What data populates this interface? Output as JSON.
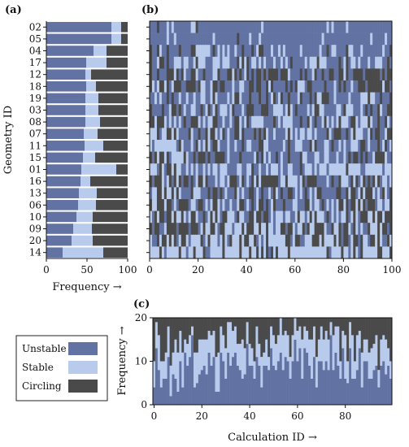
{
  "colors": {
    "unstable": "#6273a3",
    "stable": "#b8cbec",
    "circling": "#4a4a4a"
  },
  "chart_data": [
    {
      "panel": "(a)",
      "type": "bar",
      "orientation": "horizontal",
      "stacked": true,
      "categories": [
        "02",
        "05",
        "04",
        "17",
        "12",
        "18",
        "19",
        "03",
        "08",
        "07",
        "11",
        "15",
        "01",
        "16",
        "13",
        "06",
        "10",
        "09",
        "20",
        "14"
      ],
      "series": [
        {
          "name": "Unstable",
          "values": [
            80,
            80,
            58,
            49,
            48,
            49,
            48,
            48,
            48,
            46,
            47,
            45,
            43,
            42,
            40,
            39,
            37,
            33,
            31,
            20
          ]
        },
        {
          "name": "Stable",
          "values": [
            12,
            12,
            16,
            25,
            7,
            12,
            16,
            16,
            18,
            17,
            23,
            15,
            43,
            12,
            22,
            22,
            20,
            23,
            26,
            50
          ]
        },
        {
          "name": "Circling",
          "values": [
            8,
            8,
            26,
            26,
            45,
            39,
            36,
            36,
            34,
            37,
            30,
            40,
            14,
            46,
            38,
            39,
            43,
            44,
            43,
            30
          ]
        }
      ],
      "ylabel": "Geometry ID",
      "xlabel": "Frequency →",
      "xlim": [
        0,
        100
      ],
      "xticks": [
        "0",
        "50",
        "100"
      ]
    },
    {
      "panel": "(b)",
      "type": "heatmap",
      "rows": [
        "02",
        "05",
        "04",
        "17",
        "12",
        "18",
        "19",
        "03",
        "08",
        "07",
        "11",
        "15",
        "01",
        "16",
        "13",
        "06",
        "10",
        "09",
        "20",
        "14"
      ],
      "columns": 100,
      "xlim": [
        0,
        100
      ],
      "xticks": [
        "0",
        "20",
        "40",
        "60",
        "80",
        "100"
      ],
      "note": "each cell is one calculation outcome: Unstable, Stable or Circling"
    },
    {
      "panel": "(c)",
      "type": "bar",
      "stacked": true,
      "columns": 100,
      "xlabel": "Calculation ID →",
      "ylabel": "Frequency →",
      "ylim": [
        0,
        20
      ],
      "xticks": [
        "0",
        "20",
        "40",
        "60",
        "80"
      ],
      "yticks": [
        "0",
        "10",
        "20"
      ]
    }
  ],
  "labels": {
    "panel_a": "(a)",
    "panel_b": "(b)",
    "panel_c": "(c)",
    "ylabel_a": "Geometry ID",
    "xlabel_a": "Frequency →",
    "xlabel_c": "Calculation ID →",
    "ylabel_c": "Frequency →"
  },
  "legend": [
    {
      "label": "Unstable",
      "color_key": "unstable"
    },
    {
      "label": "Stable",
      "color_key": "stable"
    },
    {
      "label": "Circling",
      "color_key": "circling"
    }
  ]
}
